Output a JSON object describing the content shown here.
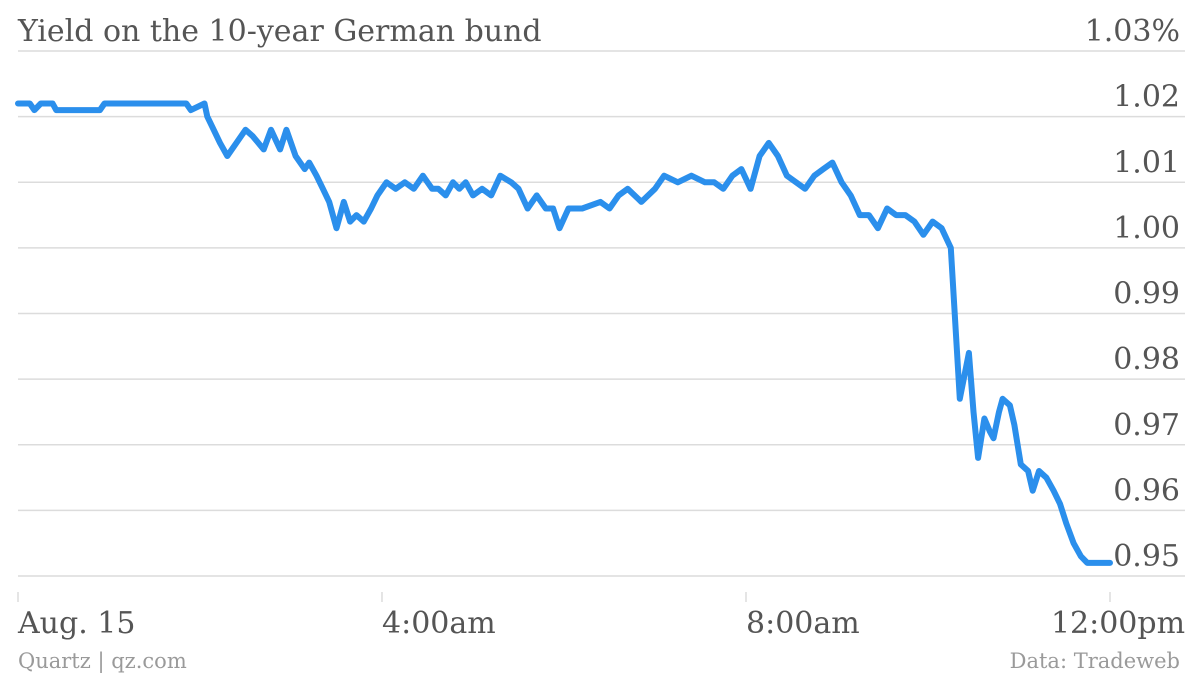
{
  "chart_data": {
    "type": "line",
    "title": "Yield on the 10-year German bund",
    "xlabel": "",
    "ylabel": "",
    "y_unit": "%",
    "ylim": [
      0.95,
      1.03
    ],
    "y_ticks": [
      0.95,
      0.96,
      0.97,
      0.98,
      0.99,
      1.0,
      1.01,
      1.02,
      1.03
    ],
    "y_tick_labels": [
      "0.95",
      "0.96",
      "0.97",
      "0.98",
      "0.99",
      "1.00",
      "1.01",
      "1.02",
      "1.03%"
    ],
    "xlim": [
      0,
      12
    ],
    "x_unit": "hours after midnight, Aug. 15",
    "x_ticks": [
      0,
      4,
      8,
      12
    ],
    "x_tick_labels": [
      "Aug. 15",
      "4:00am",
      "8:00am",
      "12:00pm"
    ],
    "grid": true,
    "series": [
      {
        "color": "#2b8fec",
        "x": [
          0.0,
          0.13,
          0.18,
          0.25,
          0.38,
          0.42,
          0.9,
          0.95,
          1.85,
          1.9,
          2.05,
          2.08,
          2.15,
          2.22,
          2.3,
          2.4,
          2.5,
          2.58,
          2.7,
          2.78,
          2.88,
          2.95,
          3.05,
          3.15,
          3.2,
          3.28,
          3.35,
          3.42,
          3.5,
          3.58,
          3.65,
          3.72,
          3.8,
          3.88,
          3.95,
          4.05,
          4.15,
          4.25,
          4.35,
          4.45,
          4.55,
          4.62,
          4.7,
          4.78,
          4.85,
          4.92,
          5.0,
          5.1,
          5.2,
          5.3,
          5.42,
          5.5,
          5.6,
          5.7,
          5.8,
          5.88,
          5.95,
          6.05,
          6.2,
          6.4,
          6.5,
          6.6,
          6.7,
          6.85,
          7.0,
          7.1,
          7.25,
          7.4,
          7.55,
          7.65,
          7.75,
          7.85,
          7.95,
          8.05,
          8.15,
          8.25,
          8.35,
          8.45,
          8.55,
          8.65,
          8.75,
          8.85,
          8.95,
          9.05,
          9.15,
          9.25,
          9.35,
          9.45,
          9.55,
          9.65,
          9.75,
          9.85,
          9.95,
          10.05,
          10.15,
          10.25,
          10.35,
          10.45,
          10.5,
          10.55,
          10.62,
          10.68,
          10.72,
          10.78,
          10.82,
          10.9,
          10.95,
          11.02,
          11.1,
          11.15,
          11.22,
          11.3,
          11.38,
          11.45,
          11.52,
          11.6,
          11.68,
          11.75,
          11.82,
          11.88,
          11.95,
          12.0
        ],
        "y": [
          1.022,
          1.022,
          1.021,
          1.022,
          1.022,
          1.021,
          1.021,
          1.022,
          1.022,
          1.021,
          1.022,
          1.02,
          1.018,
          1.016,
          1.014,
          1.016,
          1.018,
          1.017,
          1.015,
          1.018,
          1.015,
          1.018,
          1.014,
          1.012,
          1.013,
          1.011,
          1.009,
          1.007,
          1.003,
          1.007,
          1.004,
          1.005,
          1.004,
          1.006,
          1.008,
          1.01,
          1.009,
          1.01,
          1.009,
          1.011,
          1.009,
          1.009,
          1.008,
          1.01,
          1.009,
          1.01,
          1.008,
          1.009,
          1.008,
          1.011,
          1.01,
          1.009,
          1.006,
          1.008,
          1.006,
          1.006,
          1.003,
          1.006,
          1.006,
          1.007,
          1.006,
          1.008,
          1.009,
          1.007,
          1.009,
          1.011,
          1.01,
          1.011,
          1.01,
          1.01,
          1.009,
          1.011,
          1.012,
          1.009,
          1.014,
          1.016,
          1.014,
          1.011,
          1.01,
          1.009,
          1.011,
          1.012,
          1.013,
          1.01,
          1.008,
          1.005,
          1.005,
          1.003,
          1.006,
          1.005,
          1.005,
          1.004,
          1.002,
          1.004,
          1.003,
          1.0,
          0.977,
          0.984,
          0.975,
          0.968,
          0.974,
          0.972,
          0.971,
          0.975,
          0.977,
          0.976,
          0.973,
          0.967,
          0.966,
          0.963,
          0.966,
          0.965,
          0.963,
          0.961,
          0.958,
          0.955,
          0.953,
          0.952,
          0.952,
          0.952,
          0.952,
          0.952
        ]
      }
    ]
  },
  "footer": {
    "source_left": "Quartz | qz.com",
    "source_right": "Data: Tradeweb"
  }
}
